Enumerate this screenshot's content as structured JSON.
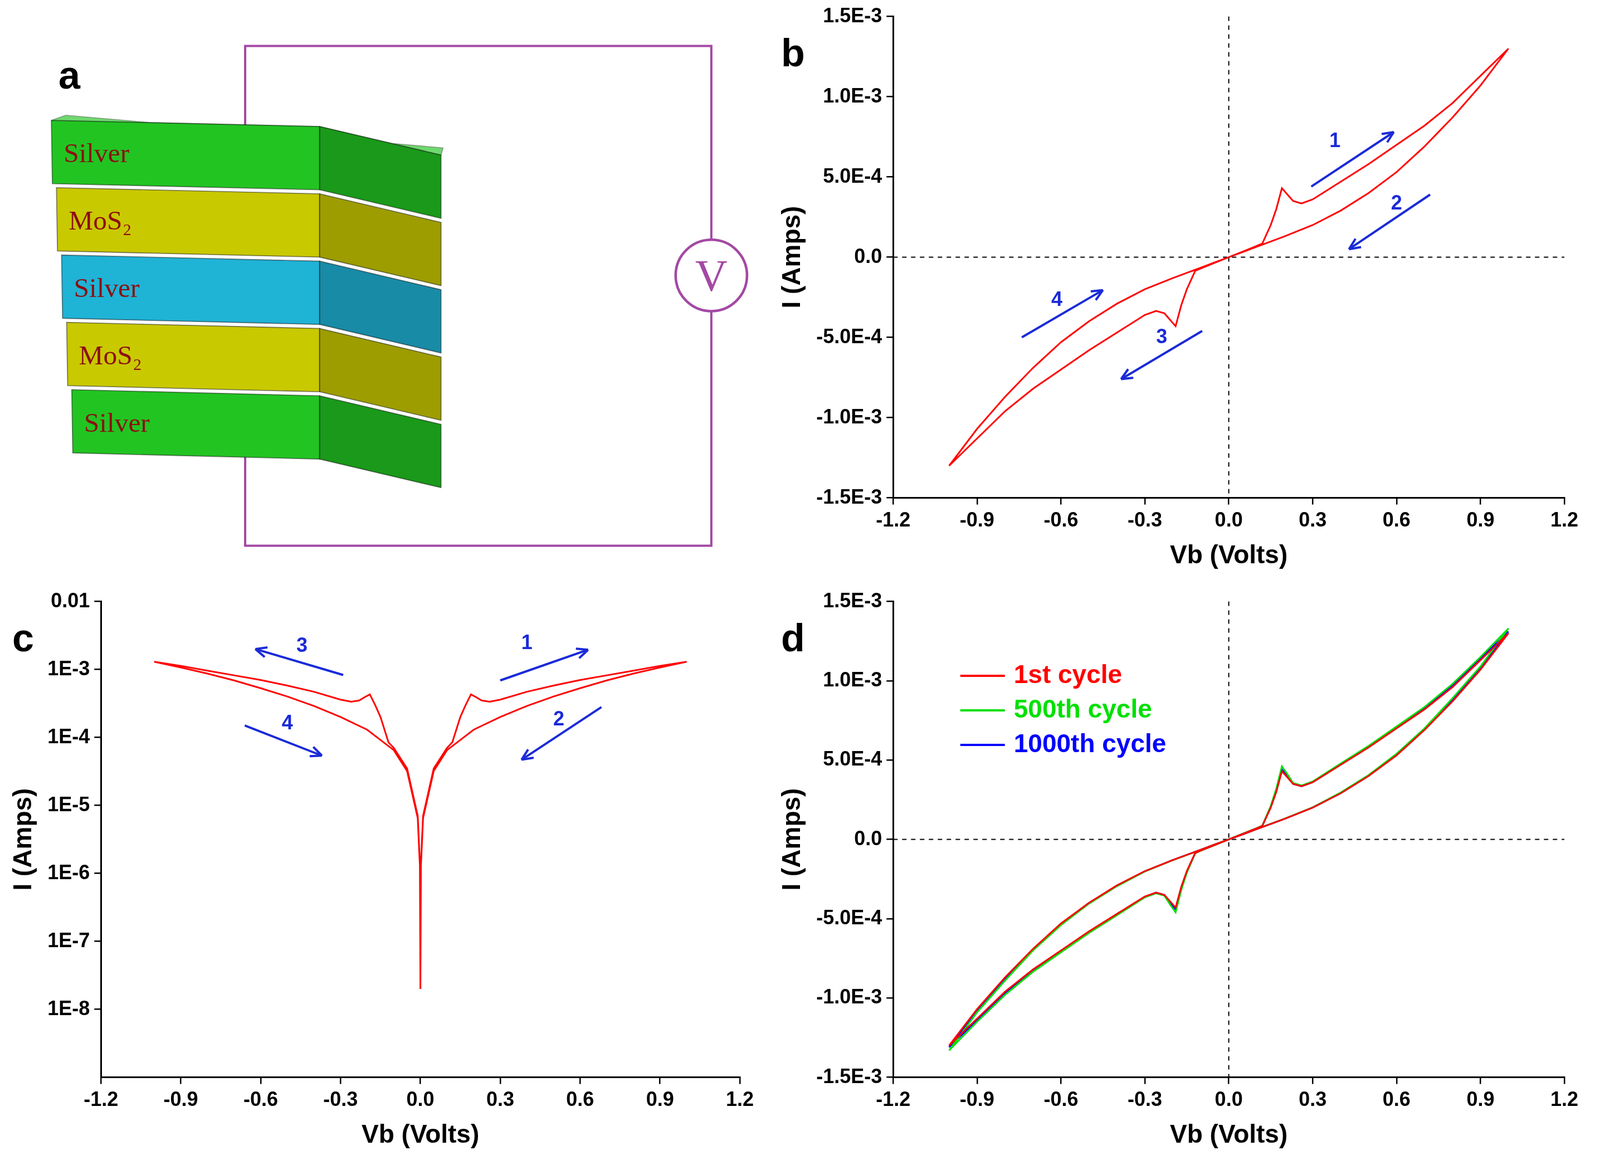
{
  "diagram": {
    "panel": "a",
    "layers": [
      {
        "label": "Silver",
        "color": "#22c422"
      },
      {
        "label": "MoS₂",
        "color": "#c9c900"
      },
      {
        "label": "Silver",
        "color": "#1fb3d6"
      },
      {
        "label": "MoS₂",
        "color": "#c9c900"
      },
      {
        "label": "Silver",
        "color": "#22c422"
      }
    ],
    "meter": "V"
  },
  "chart_data": [
    {
      "panel": "b",
      "type": "line",
      "x_label": "Vb (Volts)",
      "y_label": "I (Amps)",
      "xlim": [
        -1.2,
        1.2
      ],
      "ylim": [
        -0.0015,
        0.0015
      ],
      "xticks": [
        -1.2,
        -0.9,
        -0.6,
        -0.3,
        {
          "value": 0,
          "label": "0.0"
        },
        0.3,
        0.6,
        0.9,
        1.2
      ],
      "yticks": [
        {
          "value": -0.0015,
          "label": "-1.5E-3"
        },
        {
          "value": -0.001,
          "label": "-1.0E-3"
        },
        {
          "value": -0.0005,
          "label": "-5.0E-4"
        },
        {
          "value": 0,
          "label": "0.0"
        },
        {
          "value": 0.0005,
          "label": "5.0E-4"
        },
        {
          "value": 0.001,
          "label": "1.0E-3"
        },
        {
          "value": 0.0015,
          "label": "1.5E-3"
        }
      ],
      "grid": false,
      "reference_lines": [
        {
          "axis": "x",
          "value": 0
        },
        {
          "axis": "y",
          "value": 0
        }
      ],
      "x": [
        0,
        0.05,
        0.1,
        0.12,
        0.15,
        0.17,
        0.19,
        0.21,
        0.23,
        0.26,
        0.3,
        0.4,
        0.5,
        0.6,
        0.7,
        0.8,
        0.9,
        1.0,
        0.9,
        0.8,
        0.7,
        0.6,
        0.5,
        0.4,
        0.3,
        0.2,
        0.1,
        0.05,
        0,
        -0.05,
        -0.1,
        -0.12,
        -0.15,
        -0.17,
        -0.19,
        -0.21,
        -0.23,
        -0.26,
        -0.3,
        -0.4,
        -0.5,
        -0.6,
        -0.7,
        -0.8,
        -0.9,
        -1.0,
        -0.9,
        -0.8,
        -0.7,
        -0.6,
        -0.5,
        -0.4,
        -0.3,
        -0.2,
        -0.1,
        -0.05,
        0
      ],
      "series": [
        {
          "color": "#ff0000",
          "values": [
            0,
            3.5e-05,
            7e-05,
            8.5e-05,
            0.0002,
            0.0003,
            0.00043,
            0.00039,
            0.00035,
            0.000335,
            0.00036,
            0.00047,
            0.00058,
            0.0007,
            0.00082,
            0.00096,
            0.00113,
            0.0013,
            0.00107,
            0.00087,
            0.00069,
            0.00053,
            0.0004,
            0.00029,
            0.0002,
            0.00013,
            6.5e-05,
            3.2e-05,
            0,
            -3.5e-05,
            -7e-05,
            -8.5e-05,
            -0.0002,
            -0.0003,
            -0.00043,
            -0.00039,
            -0.00035,
            -0.000335,
            -0.00036,
            -0.00047,
            -0.00058,
            -0.0007,
            -0.00082,
            -0.00096,
            -0.00113,
            -0.0013,
            -0.00107,
            -0.00087,
            -0.00069,
            -0.00053,
            -0.0004,
            -0.00029,
            -0.0002,
            -0.00013,
            -6.5e-05,
            -3.2e-05,
            0
          ]
        }
      ],
      "annotations": [
        {
          "text": "1",
          "x": 0.38,
          "y": 0.00072,
          "arrow_from": [
            0.295,
            0.00044
          ],
          "arrow_to": [
            0.59,
            0.00078
          ]
        },
        {
          "text": "2",
          "x": 0.6,
          "y": 0.00033,
          "arrow_from": [
            0.72,
            0.00039
          ],
          "arrow_to": [
            0.43,
            5e-05
          ]
        },
        {
          "text": "3",
          "x": -0.24,
          "y": -0.0005,
          "arrow_from": [
            -0.095,
            -0.00046
          ],
          "arrow_to": [
            -0.385,
            -0.00076
          ]
        },
        {
          "text": "4",
          "x": -0.615,
          "y": -0.00027,
          "arrow_from": [
            -0.74,
            -0.0005
          ],
          "arrow_to": [
            -0.45,
            -0.000205
          ]
        }
      ]
    },
    {
      "panel": "c",
      "type": "line",
      "x_label": "Vb (Volts)",
      "y_label": "I (Amps)",
      "log": "y",
      "xlim": [
        -1.2,
        1.2
      ],
      "ylim": [
        1e-09,
        0.01
      ],
      "xticks": [
        -1.2,
        -0.9,
        -0.6,
        -0.3,
        {
          "value": 0,
          "label": "0.0"
        },
        0.3,
        0.6,
        0.9,
        1.2
      ],
      "yticks": [
        {
          "value": 1e-08,
          "label": "1E-8"
        },
        {
          "value": 1e-07,
          "label": "1E-7"
        },
        {
          "value": 1e-06,
          "label": "1E-6"
        },
        {
          "value": 1e-05,
          "label": "1E-5"
        },
        {
          "value": 0.0001,
          "label": "1E-4"
        },
        {
          "value": 0.001,
          "label": "1E-3"
        },
        0.01
      ],
      "grid": false,
      "x": [
        0,
        0.002,
        0.01,
        0.05,
        0.1,
        0.12,
        0.15,
        0.17,
        0.19,
        0.21,
        0.23,
        0.26,
        0.3,
        0.4,
        0.5,
        0.6,
        0.7,
        0.8,
        0.9,
        1.0,
        0.9,
        0.8,
        0.7,
        0.6,
        0.5,
        0.4,
        0.3,
        0.2,
        0.1,
        0.05,
        0.01,
        0.002,
        0,
        -0.002,
        -0.01,
        -0.05,
        -0.1,
        -0.12,
        -0.15,
        -0.17,
        -0.19,
        -0.21,
        -0.23,
        -0.26,
        -0.3,
        -0.4,
        -0.5,
        -0.6,
        -0.7,
        -0.8,
        -0.9,
        -1.0,
        -0.9,
        -0.8,
        -0.7,
        -0.6,
        -0.5,
        -0.4,
        -0.3,
        -0.2,
        -0.1,
        -0.05,
        -0.01,
        -0.002,
        0
      ],
      "series": [
        {
          "color": "#ff0000",
          "values": [
            2e-08,
            1.4e-06,
            7e-06,
            3.5e-05,
            7e-05,
            8.5e-05,
            0.0002,
            0.0003,
            0.00043,
            0.00039,
            0.00035,
            0.000335,
            0.00036,
            0.00047,
            0.00058,
            0.0007,
            0.00082,
            0.00096,
            0.00113,
            0.0013,
            0.00107,
            0.00087,
            0.00069,
            0.00053,
            0.0004,
            0.00029,
            0.0002,
            0.00013,
            6.5e-05,
            3.2e-05,
            6.5e-06,
            1.3e-06,
            2e-08,
            1.4e-06,
            7e-06,
            3.5e-05,
            7e-05,
            8.5e-05,
            0.0002,
            0.0003,
            0.00043,
            0.00039,
            0.00035,
            0.000335,
            0.00036,
            0.00047,
            0.00058,
            0.0007,
            0.00082,
            0.00096,
            0.00113,
            0.0013,
            0.00107,
            0.00087,
            0.00069,
            0.00053,
            0.0004,
            0.00029,
            0.0002,
            0.00013,
            6.5e-05,
            3.2e-05,
            6.5e-06,
            1.3e-06,
            2e-08
          ]
        }
      ],
      "annotations": [
        {
          "text": "1",
          "x": 0.4,
          "y": 0.0024,
          "arrow_from": [
            0.3,
            0.00069
          ],
          "arrow_to": [
            0.63,
            0.00195
          ]
        },
        {
          "text": "2",
          "x": 0.52,
          "y": 0.00018,
          "arrow_from": [
            0.68,
            0.00028
          ],
          "arrow_to": [
            0.38,
            4.7e-05
          ]
        },
        {
          "text": "3",
          "x": -0.445,
          "y": 0.0022,
          "arrow_from": [
            -0.29,
            0.00083
          ],
          "arrow_to": [
            -0.62,
            0.002
          ]
        },
        {
          "text": "4",
          "x": -0.5,
          "y": 0.00016,
          "arrow_from": [
            -0.66,
            0.00015
          ],
          "arrow_to": [
            -0.37,
            5.4e-05
          ]
        }
      ]
    },
    {
      "panel": "d",
      "type": "line",
      "x_label": "Vb (Volts)",
      "y_label": "I (Amps)",
      "xlim": [
        -1.2,
        1.2
      ],
      "ylim": [
        -0.0015,
        0.0015
      ],
      "xticks": [
        -1.2,
        -0.9,
        -0.6,
        -0.3,
        {
          "value": 0,
          "label": "0.0"
        },
        0.3,
        0.6,
        0.9,
        1.2
      ],
      "yticks": [
        {
          "value": -0.0015,
          "label": "-1.5E-3"
        },
        {
          "value": -0.001,
          "label": "-1.0E-3"
        },
        {
          "value": -0.0005,
          "label": "-5.0E-4"
        },
        {
          "value": 0,
          "label": "0.0"
        },
        {
          "value": 0.0005,
          "label": "5.0E-4"
        },
        {
          "value": 0.001,
          "label": "1.0E-3"
        },
        {
          "value": 0.0015,
          "label": "1.5E-3"
        }
      ],
      "grid": false,
      "legend": "upper left",
      "reference_lines": [
        {
          "axis": "x",
          "value": 0
        },
        {
          "axis": "y",
          "value": 0
        }
      ],
      "x": [
        0,
        0.05,
        0.1,
        0.12,
        0.15,
        0.17,
        0.19,
        0.21,
        0.23,
        0.26,
        0.3,
        0.4,
        0.5,
        0.6,
        0.7,
        0.8,
        0.9,
        1.0,
        0.9,
        0.8,
        0.7,
        0.6,
        0.5,
        0.4,
        0.3,
        0.2,
        0.1,
        0.05,
        0,
        -0.05,
        -0.1,
        -0.12,
        -0.15,
        -0.17,
        -0.19,
        -0.21,
        -0.23,
        -0.26,
        -0.3,
        -0.4,
        -0.5,
        -0.6,
        -0.7,
        -0.8,
        -0.9,
        -1.0,
        -0.9,
        -0.8,
        -0.7,
        -0.6,
        -0.5,
        -0.4,
        -0.3,
        -0.2,
        -0.1,
        -0.05,
        0
      ],
      "series": [
        {
          "name": "1st cycle",
          "color": "#ff0000",
          "values": [
            0,
            3.5e-05,
            7e-05,
            8.5e-05,
            0.0002,
            0.0003,
            0.00043,
            0.00039,
            0.00035,
            0.000335,
            0.00036,
            0.00047,
            0.00058,
            0.0007,
            0.00082,
            0.00096,
            0.00113,
            0.0013,
            0.00107,
            0.00087,
            0.00069,
            0.00053,
            0.0004,
            0.00029,
            0.0002,
            0.00013,
            6.5e-05,
            3.2e-05,
            0,
            -3.5e-05,
            -7e-05,
            -8.5e-05,
            -0.0002,
            -0.0003,
            -0.00043,
            -0.00039,
            -0.00035,
            -0.000335,
            -0.00036,
            -0.00047,
            -0.00058,
            -0.0007,
            -0.00082,
            -0.00096,
            -0.00113,
            -0.0013,
            -0.00107,
            -0.00087,
            -0.00069,
            -0.00053,
            -0.0004,
            -0.00029,
            -0.0002,
            -0.00013,
            -6.5e-05,
            -3.2e-05,
            0
          ]
        },
        {
          "name": "500th cycle",
          "color": "#00e000",
          "values": [
            0,
            3.6e-05,
            7.1e-05,
            8.7e-05,
            0.00021,
            0.00032,
            0.00046,
            0.00041,
            0.000355,
            0.00034,
            0.000365,
            0.000478,
            0.00059,
            0.000712,
            0.000835,
            0.00098,
            0.00115,
            0.00133,
            0.00109,
            0.00089,
            0.0007,
            0.00054,
            0.000405,
            0.000295,
            0.000202,
            0.000131,
            6.6e-05,
            3.3e-05,
            0,
            -3.6e-05,
            -7.1e-05,
            -8.7e-05,
            -0.00021,
            -0.00032,
            -0.00046,
            -0.00041,
            -0.000355,
            -0.00034,
            -0.000365,
            -0.000478,
            -0.00059,
            -0.000712,
            -0.000835,
            -0.00098,
            -0.00115,
            -0.00133,
            -0.00109,
            -0.00089,
            -0.0007,
            -0.00054,
            -0.000405,
            -0.000295,
            -0.000202,
            -0.000131,
            -6.6e-05,
            -3.3e-05,
            0
          ]
        },
        {
          "name": "1000th cycle",
          "color": "#0000ff",
          "values": [
            0,
            3.5e-05,
            7e-05,
            8.6e-05,
            0.000205,
            0.00031,
            0.00044,
            0.0004,
            0.00035,
            0.000335,
            0.000362,
            0.000472,
            0.000584,
            0.000704,
            0.000826,
            0.00097,
            0.00114,
            0.00131,
            0.00108,
            0.00088,
            0.000695,
            0.000535,
            0.000402,
            0.000292,
            0.000201,
            0.00013,
            6.5e-05,
            3.2e-05,
            0,
            -3.5e-05,
            -7e-05,
            -8.6e-05,
            -0.000205,
            -0.00031,
            -0.00044,
            -0.0004,
            -0.00035,
            -0.000335,
            -0.000362,
            -0.000472,
            -0.000584,
            -0.000704,
            -0.000826,
            -0.00097,
            -0.00114,
            -0.00131,
            -0.00108,
            -0.00088,
            -0.000695,
            -0.000535,
            -0.000402,
            -0.000292,
            -0.000201,
            -0.00013,
            -6.5e-05,
            -3.2e-05,
            0
          ]
        }
      ]
    }
  ]
}
